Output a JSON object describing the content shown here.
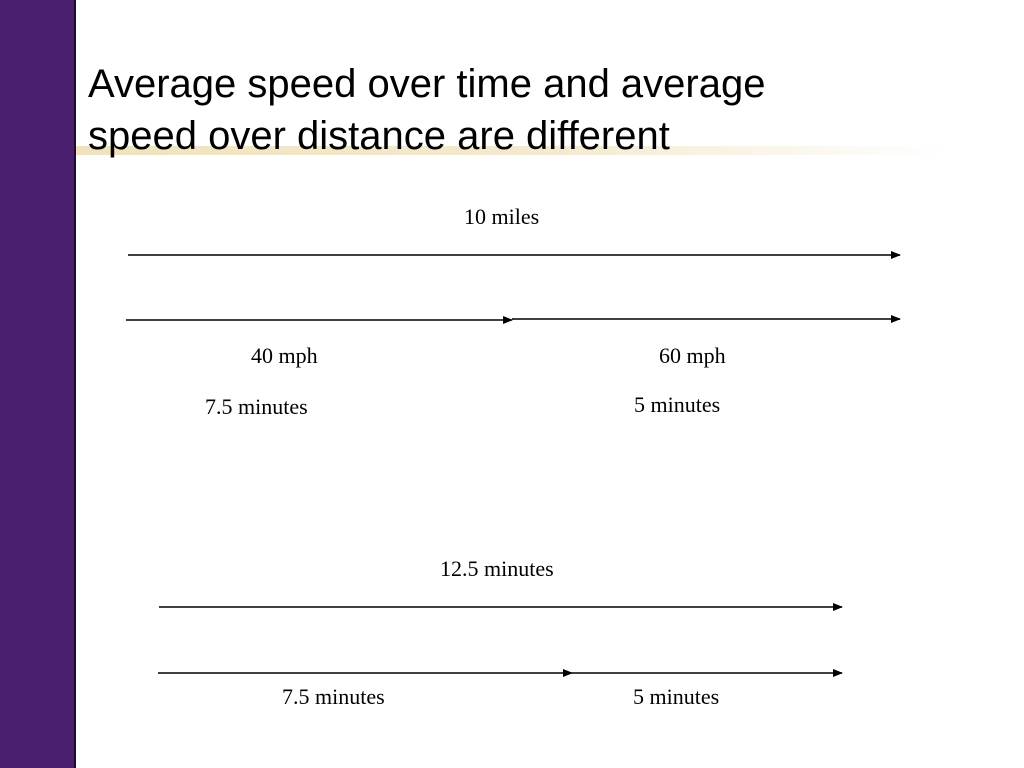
{
  "slide": {
    "title_line1": "Average speed over time and average",
    "title_line2": "speed over distance are different",
    "colors": {
      "sidebar": "#4b1f6f",
      "underline": "#efe2bd",
      "arrow": "#000000"
    }
  },
  "distance_diagram": {
    "total_label": "10 miles",
    "segment1": {
      "speed": "40 mph",
      "time": "7.5 minutes"
    },
    "segment2": {
      "speed": "60 mph",
      "time": "5 minutes"
    }
  },
  "time_diagram": {
    "total_label": "12.5 minutes",
    "segment1": {
      "time": "7.5 minutes"
    },
    "segment2": {
      "time": "5 minutes"
    }
  }
}
